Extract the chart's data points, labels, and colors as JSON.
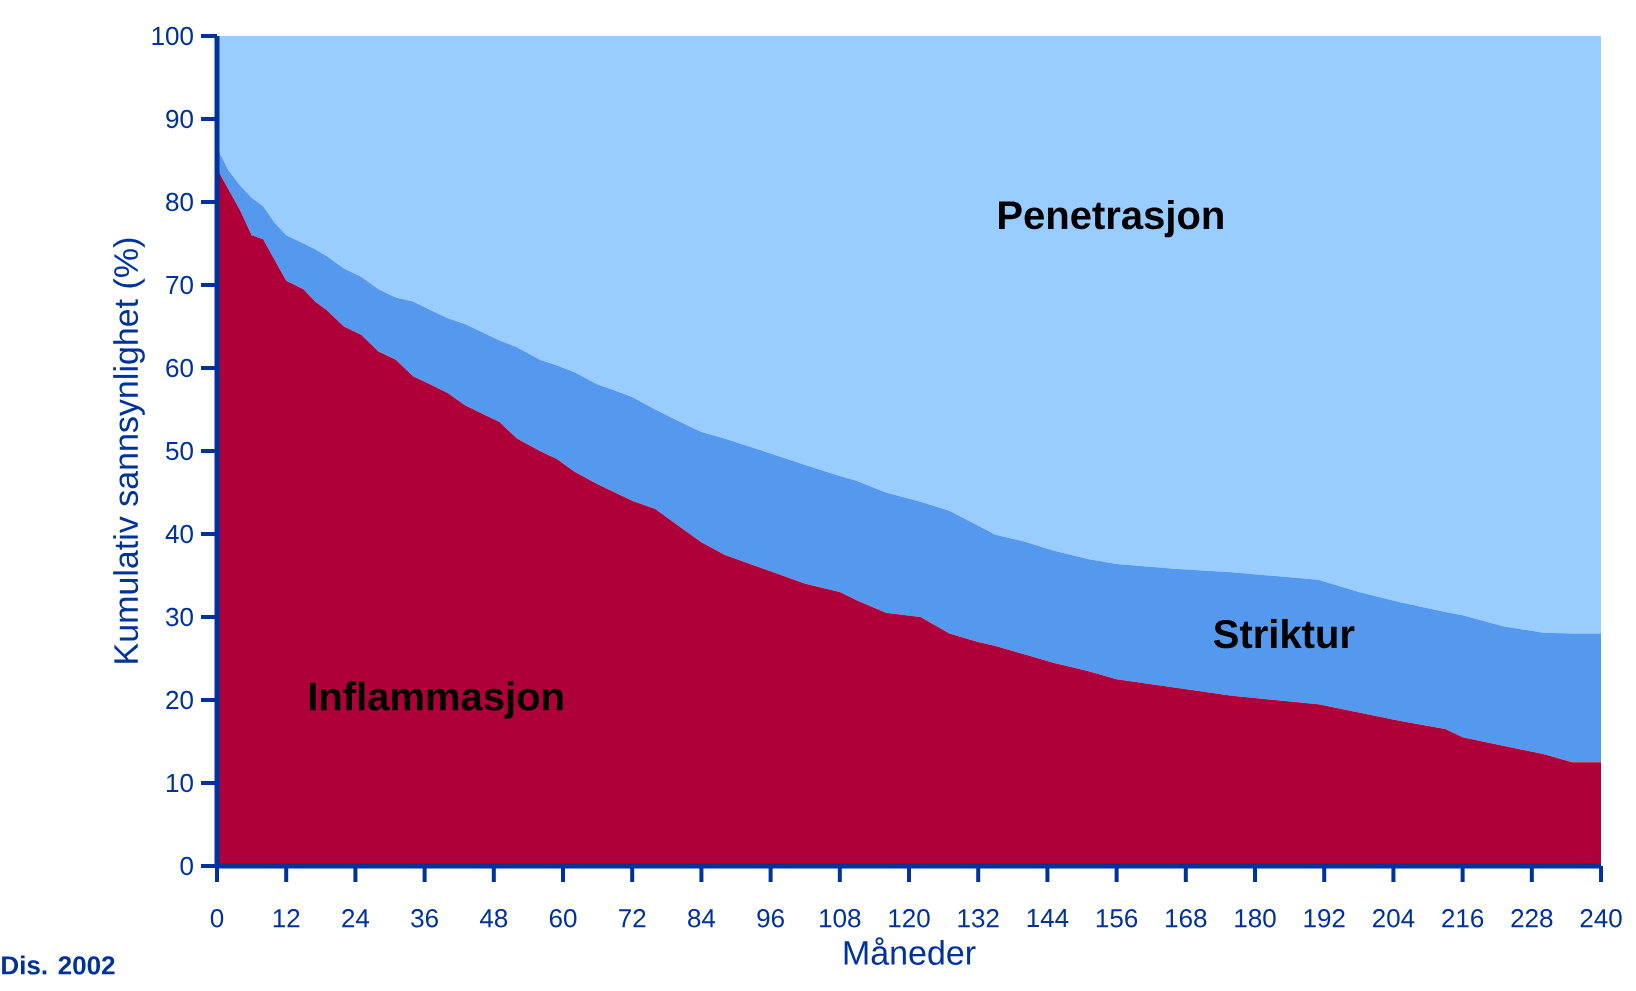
{
  "chart_data": {
    "type": "area",
    "stacked": true,
    "xlabel": "Måneder",
    "ylabel": "Kumulativ sannsynlighet (%)",
    "xlim": [
      0,
      240
    ],
    "ylim": [
      0,
      100
    ],
    "xticks": [
      0,
      12,
      24,
      36,
      48,
      60,
      72,
      84,
      96,
      108,
      120,
      132,
      144,
      156,
      168,
      180,
      192,
      204,
      216,
      228,
      240
    ],
    "yticks": [
      0,
      10,
      20,
      30,
      40,
      50,
      60,
      70,
      80,
      90,
      100
    ],
    "grid": false,
    "annotations": [
      "Dis. 2002"
    ],
    "x": [
      0,
      2,
      4,
      6,
      8,
      10,
      12,
      15,
      17,
      19,
      22,
      25,
      28,
      31,
      34,
      37,
      40,
      43,
      46,
      49,
      52,
      56,
      59,
      62,
      66,
      69,
      72,
      76,
      80,
      84,
      88,
      96,
      102,
      108,
      111,
      116,
      122,
      127,
      132,
      135,
      140,
      145,
      151,
      156,
      166,
      176,
      191,
      198,
      205,
      213,
      216,
      223,
      230,
      235,
      240
    ],
    "series": [
      {
        "name": "Inflammasjon",
        "color": "#b0003a",
        "values": [
          84,
          81.5,
          79,
          76,
          75.5,
          73,
          70.5,
          69.5,
          68,
          67,
          65,
          64,
          62,
          61,
          59,
          58,
          57,
          55.5,
          54.5,
          53.5,
          51.5,
          50,
          49,
          47.5,
          46,
          45,
          44,
          43,
          41,
          39,
          37.5,
          35.5,
          34,
          33,
          32,
          30.5,
          30,
          28,
          27,
          26.5,
          25.5,
          24.5,
          23.5,
          22.5,
          21.5,
          20.5,
          19.5,
          18.5,
          17.5,
          16.5,
          15.5,
          14.5,
          13.5,
          12.5,
          12.5
        ]
      },
      {
        "name": "Striktur",
        "color": "#5599ee",
        "values": [
          2.5,
          2.3,
          3,
          4.5,
          4,
          4.5,
          5.5,
          5.5,
          6.3,
          6.5,
          7,
          7,
          7.5,
          7.5,
          9,
          9,
          9,
          9.8,
          9.8,
          9.8,
          11,
          11,
          11.3,
          12,
          12,
          12.3,
          12.5,
          12,
          12.6,
          13.3,
          14,
          14.2,
          14.3,
          14,
          14.4,
          14.5,
          13.9,
          14.8,
          14,
          13.4,
          13.6,
          13.5,
          13.5,
          13.9,
          14.3,
          14.9,
          15,
          14.5,
          14.3,
          14.1,
          14.7,
          14.4,
          14.6,
          15.5,
          15.5
        ]
      },
      {
        "name": "Penetrasjon",
        "color": "#99ccff",
        "values": [
          13.5,
          16.2,
          18,
          19.5,
          20.5,
          22.5,
          24,
          25,
          25.7,
          26.5,
          28,
          29,
          30.5,
          31.5,
          32,
          33,
          34,
          34.7,
          35.7,
          36.7,
          37.5,
          39,
          39.7,
          40.5,
          42,
          42.7,
          43.5,
          45,
          46.4,
          47.7,
          48.5,
          50.3,
          51.7,
          53,
          53.6,
          55,
          56.1,
          57.2,
          59,
          60.1,
          60.9,
          62,
          63,
          63.6,
          64.2,
          64.6,
          65.5,
          67,
          68.2,
          69.4,
          69.8,
          71.1,
          71.9,
          72,
          72
        ]
      }
    ]
  }
}
